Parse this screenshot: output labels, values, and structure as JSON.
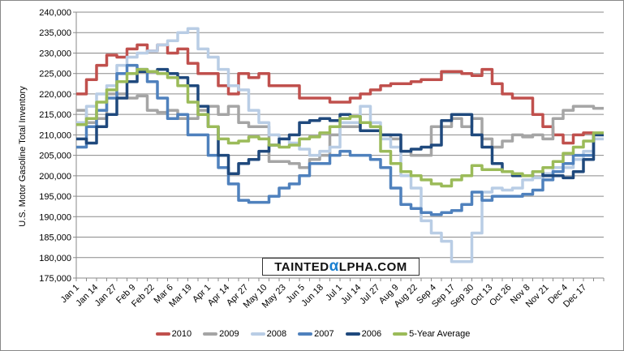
{
  "chart_data": {
    "type": "line",
    "title": "",
    "ylabel": "U.S. Motor Gasoline Total Inventory",
    "xlabel": "",
    "ylim": [
      175000,
      240000
    ],
    "ytick_step": 5000,
    "grid": true,
    "legend_position": "bottom",
    "watermark": "TAINTEDαLPHA.COM",
    "x_tick_labels": [
      "Jan 1",
      "Jan 14",
      "Jan 27",
      "Feb 9",
      "Feb 22",
      "Mar 6",
      "Mar 19",
      "Apr 1",
      "Apr 14",
      "Apr 27",
      "May 10",
      "May 23",
      "Jun 5",
      "Jun 18",
      "Jul 1",
      "Jul 14",
      "Jul 27",
      "Aug 9",
      "Aug 22",
      "Sep 4",
      "Sep 17",
      "Sep 30",
      "Oct 13",
      "Oct 26",
      "Nov 8",
      "Nov 21",
      "Dec 4",
      "Dec 17"
    ],
    "x_unit": "week of year (0-51)",
    "series": [
      {
        "name": "2010",
        "color": "#c0504d",
        "values": [
          220,
          223.5,
          227,
          229.5,
          229,
          231,
          232,
          230.5,
          232,
          230,
          231,
          227.5,
          225,
          225,
          222,
          220,
          225,
          224,
          225,
          222,
          222,
          222,
          219,
          219,
          219,
          218,
          218,
          219,
          220,
          221,
          222,
          222.5,
          222.5,
          223,
          223.5,
          223.5,
          225.5,
          225.5,
          225,
          224.5,
          226,
          222.5,
          220,
          219,
          219,
          215,
          212,
          210,
          208,
          210,
          210.5
        ]
      },
      {
        "name": "2009",
        "color": "#a5a5a5",
        "values": [
          216,
          213,
          214,
          220,
          220,
          219,
          219.5,
          216,
          215.5,
          216,
          214,
          214,
          216,
          217,
          215,
          217,
          213,
          212,
          212,
          203.5,
          203.5,
          203,
          202,
          204,
          205,
          210,
          212,
          212,
          213,
          212,
          210,
          209,
          206,
          205,
          205,
          212,
          212,
          214,
          212,
          214,
          209,
          207,
          208.5,
          210,
          209.5,
          210,
          209,
          214,
          216,
          217,
          217,
          216.5
        ]
      },
      {
        "name": "2008",
        "color": "#b9cde5",
        "values": [
          213,
          217,
          220,
          222,
          227,
          229,
          230,
          230.5,
          232,
          233,
          235,
          236,
          231,
          229,
          226,
          222,
          221,
          216,
          213,
          210,
          209,
          208,
          206.5,
          205,
          206,
          207,
          213,
          213,
          217,
          213,
          209,
          207,
          200,
          197,
          189,
          186,
          184,
          179,
          179,
          186,
          196,
          197,
          196.5,
          197,
          199,
          199.5,
          200.5,
          202,
          202,
          204,
          206,
          209
        ]
      },
      {
        "name": "2007",
        "color": "#4f81bd",
        "values": [
          207,
          212,
          216,
          219,
          225,
          227,
          226,
          223,
          219,
          214,
          215,
          210,
          210,
          205,
          202,
          198,
          194,
          193.5,
          193.5,
          195,
          197,
          198,
          200,
          203,
          203,
          205,
          206,
          205,
          205,
          204,
          202,
          197,
          193,
          192,
          191,
          190.5,
          191,
          191.5,
          193,
          196,
          194,
          195,
          195,
          195,
          195.5,
          196.5,
          199,
          201,
          203,
          205,
          205,
          210
        ]
      },
      {
        "name": "2006",
        "color": "#1f497d",
        "values": [
          209,
          208,
          212,
          215,
          219,
          223,
          225.5,
          225.5,
          226,
          225,
          224,
          222,
          217,
          212,
          205,
          200.5,
          203,
          204,
          206,
          207.5,
          209,
          210,
          213,
          213.5,
          214,
          213.5,
          215,
          214.5,
          211,
          211,
          210,
          210,
          206,
          206.5,
          207,
          207.5,
          213.5,
          215,
          215,
          210,
          207,
          203,
          201,
          200,
          200,
          201,
          200,
          200,
          199.5,
          201,
          204,
          210
        ]
      },
      {
        "name": "5-Year Average",
        "color": "#9bbb59",
        "values": [
          212.5,
          214,
          218,
          221,
          223,
          225,
          226,
          225.5,
          225,
          224,
          222,
          218,
          215,
          212,
          209,
          208,
          208.5,
          209.5,
          209,
          207.5,
          207,
          207.5,
          209,
          209.5,
          210.5,
          212,
          214,
          214.5,
          213,
          212,
          206,
          203,
          201,
          200,
          199,
          198,
          197.5,
          199,
          200,
          202.5,
          201.5,
          201.5,
          201,
          200.5,
          200,
          201,
          202,
          203.5,
          205.5,
          207,
          208.5,
          210.5
        ]
      }
    ],
    "value_unit": "thousand (values shown x1000)"
  }
}
